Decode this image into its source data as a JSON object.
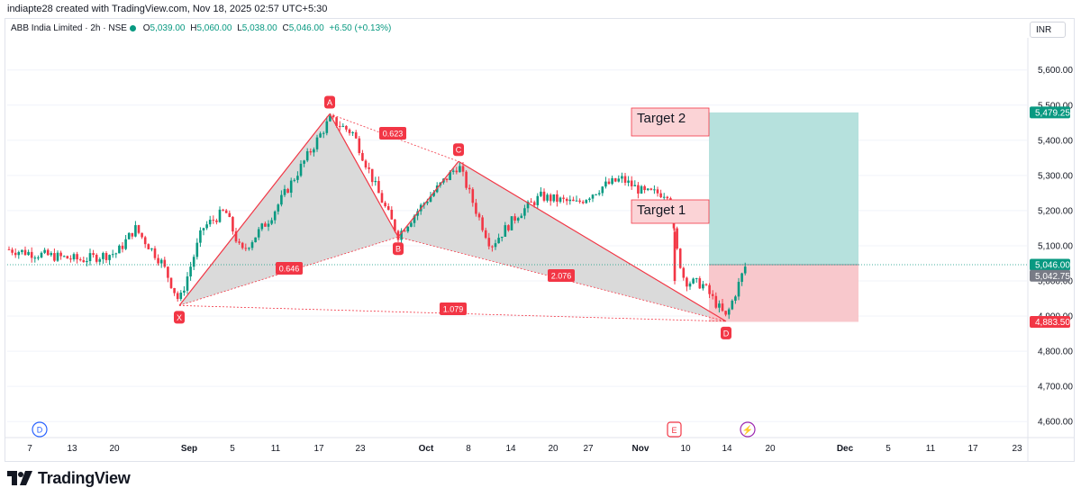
{
  "header": {
    "credit": "indiapte28 created with TradingView.com, Nov 18, 2025 02:57 UTC+5:30",
    "symbol": "ABB India Limited · 2h · NSE",
    "open_label": "O",
    "open": "5,039.00",
    "high_label": "H",
    "high": "5,060.00",
    "low_label": "L",
    "low": "5,038.00",
    "close_label": "C",
    "close": "5,046.00",
    "change": "+6.50 (+0.13%)",
    "currency": "INR"
  },
  "brand": {
    "name": "TradingView"
  },
  "colors": {
    "up": "#089981",
    "down": "#f23645",
    "pattern": "#f23645",
    "target_zone": "#b2dfdb",
    "stop_zone": "#f8c5c9"
  },
  "chart_data": {
    "type": "candlestick",
    "y_axis": {
      "ticks": [
        4600,
        4700,
        4800,
        4900,
        5000,
        5100,
        5200,
        5300,
        5400,
        5500,
        5600
      ],
      "tick_labels": [
        "4,600.00",
        "4,700.00",
        "4,800.00",
        "4,900.00",
        "5,000.00",
        "5,100.00",
        "5,200.00",
        "5,300.00",
        "5,400.00",
        "5,500.00",
        "5,600.00"
      ],
      "range": [
        4555,
        5685
      ]
    },
    "x_axis": {
      "labels": [
        "7",
        "13",
        "20",
        "Sep",
        "5",
        "11",
        "17",
        "23",
        "Oct",
        "8",
        "14",
        "20",
        "27",
        "Nov",
        "10",
        "14",
        "20",
        "Dec",
        "5",
        "11",
        "17",
        "23"
      ],
      "bold_labels": [
        "Sep",
        "Oct",
        "Nov",
        "Dec"
      ]
    },
    "price_tags": [
      {
        "label": "5,479.25",
        "value": 5479.25,
        "color": "#089981"
      },
      {
        "label": "5,046.00",
        "value": 5046,
        "color": "#089981"
      },
      {
        "label": "5,042.75",
        "value": 5042.75,
        "color": "#787b86"
      },
      {
        "label": "4,883.50",
        "value": 4883.5,
        "color": "#f23645"
      }
    ],
    "pattern": {
      "points": [
        {
          "label": "X",
          "price": 4930
        },
        {
          "label": "A",
          "price": 5475
        },
        {
          "label": "B",
          "price": 5125
        },
        {
          "label": "C",
          "price": 5340
        },
        {
          "label": "D",
          "price": 4885
        }
      ],
      "ratios": [
        "0.646",
        "0.623",
        "2.076",
        "1.079"
      ]
    },
    "position": {
      "entry": 5046,
      "target": 5479.25,
      "stop": 4883.5
    },
    "annotations": [
      "Target 2",
      "Target 1"
    ],
    "event_markers": [
      "D",
      "E",
      "⚡"
    ]
  }
}
